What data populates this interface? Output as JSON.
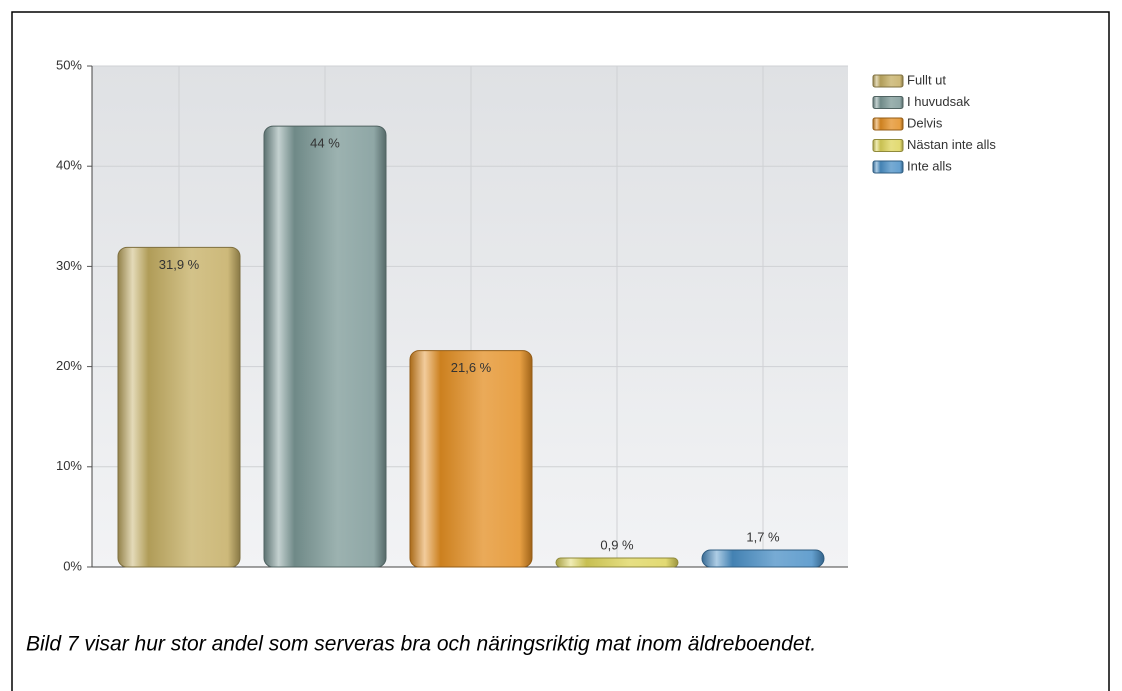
{
  "chart_data": {
    "type": "bar",
    "categories": [
      "Fullt ut",
      "I huvudsak",
      "Delvis",
      "Nästan inte alls",
      "Inte alls"
    ],
    "values": [
      31.9,
      44,
      21.6,
      0.9,
      1.7
    ],
    "value_labels": [
      "31,9 %",
      "44 %",
      "21,6 %",
      "0,9 %",
      "1,7 %"
    ],
    "colors": [
      "#c4ad62",
      "#7b9896",
      "#e38e22",
      "#ddd45a",
      "#4a8fc6"
    ],
    "ylim": [
      0,
      50
    ],
    "yticks": [
      {
        "value": 0,
        "label": "0%"
      },
      {
        "value": 10,
        "label": "10%"
      },
      {
        "value": 20,
        "label": "20%"
      },
      {
        "value": 30,
        "label": "30%"
      },
      {
        "value": 40,
        "label": "40%"
      },
      {
        "value": 50,
        "label": "50%"
      }
    ],
    "grid": true,
    "legend": "right"
  },
  "caption": "Bild 7 visar hur stor andel som serveras bra och näringsriktig mat inom äldreboendet."
}
